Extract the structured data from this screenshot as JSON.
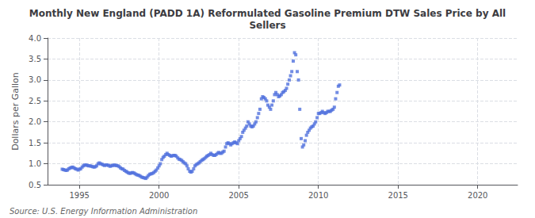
{
  "chart_data": {
    "type": "scatter",
    "title": "Monthly New England (PADD 1A) Reformulated Gasoline Premium DTW Sales Price by All\nSellers",
    "ylabel": "Dollars per Gallon",
    "annotations": [
      "Source: U.S. Energy Information Administration"
    ],
    "marker": "square",
    "grid": true,
    "xlim": [
      1993.0,
      2022.5
    ],
    "xticks": [
      1995,
      2000,
      2005,
      2010,
      2015,
      2020
    ],
    "ylim": [
      0.5,
      4.0
    ],
    "yticks": [
      0.5,
      {
        "value": 1.0,
        "label": "1.0"
      },
      1.5,
      {
        "value": 2.0,
        "label": "2.0"
      },
      2.5,
      {
        "value": 3.0,
        "label": "3.0"
      },
      3.5,
      {
        "value": 4.0,
        "label": "4.0"
      }
    ],
    "x": [
      1993.92,
      1994.0,
      1994.08,
      1994.17,
      1994.25,
      1994.33,
      1994.42,
      1994.5,
      1994.58,
      1994.67,
      1994.75,
      1994.83,
      1994.92,
      1995.0,
      1995.08,
      1995.17,
      1995.25,
      1995.33,
      1995.42,
      1995.5,
      1995.58,
      1995.67,
      1995.75,
      1995.83,
      1995.92,
      1996.0,
      1996.08,
      1996.17,
      1996.25,
      1996.33,
      1996.42,
      1996.5,
      1996.58,
      1996.67,
      1996.75,
      1996.83,
      1996.92,
      1997.0,
      1997.08,
      1997.17,
      1997.25,
      1997.33,
      1997.42,
      1997.5,
      1997.58,
      1997.67,
      1997.75,
      1997.83,
      1997.92,
      1998.0,
      1998.08,
      1998.17,
      1998.25,
      1998.33,
      1998.42,
      1998.5,
      1998.58,
      1998.67,
      1998.75,
      1998.83,
      1998.92,
      1999.0,
      1999.08,
      1999.17,
      1999.25,
      1999.33,
      1999.42,
      1999.5,
      1999.58,
      1999.67,
      1999.75,
      1999.83,
      1999.92,
      2000.0,
      2000.08,
      2000.17,
      2000.25,
      2000.33,
      2000.42,
      2000.5,
      2000.58,
      2000.67,
      2000.75,
      2000.83,
      2000.92,
      2001.0,
      2001.08,
      2001.17,
      2001.25,
      2001.33,
      2001.42,
      2001.5,
      2001.58,
      2001.67,
      2001.75,
      2001.83,
      2001.92,
      2002.0,
      2002.08,
      2002.17,
      2002.25,
      2002.33,
      2002.42,
      2002.5,
      2002.58,
      2002.67,
      2002.75,
      2002.83,
      2002.92,
      2003.0,
      2003.08,
      2003.17,
      2003.25,
      2003.33,
      2003.42,
      2003.5,
      2003.58,
      2003.67,
      2003.75,
      2003.83,
      2003.92,
      2004.0,
      2004.08,
      2004.17,
      2004.25,
      2004.33,
      2004.42,
      2004.5,
      2004.58,
      2004.67,
      2004.75,
      2004.83,
      2004.92,
      2005.0,
      2005.08,
      2005.17,
      2005.25,
      2005.33,
      2005.42,
      2005.5,
      2005.58,
      2005.67,
      2005.75,
      2005.83,
      2005.92,
      2006.0,
      2006.08,
      2006.17,
      2006.25,
      2006.33,
      2006.42,
      2006.5,
      2006.58,
      2006.67,
      2006.75,
      2006.83,
      2006.92,
      2007.0,
      2007.08,
      2007.17,
      2007.25,
      2007.33,
      2007.42,
      2007.5,
      2007.58,
      2007.67,
      2007.75,
      2007.83,
      2007.92,
      2008.0,
      2008.08,
      2008.17,
      2008.25,
      2008.33,
      2008.42,
      2008.5,
      2008.58,
      2008.67,
      2008.75,
      2008.83,
      2008.92,
      2009.0,
      2009.08,
      2009.17,
      2009.25,
      2009.33,
      2009.42,
      2009.5,
      2009.58,
      2009.67,
      2009.75,
      2009.83,
      2009.92,
      2010.0,
      2010.08,
      2010.17,
      2010.25,
      2010.33,
      2010.42,
      2010.5,
      2010.58,
      2010.67,
      2010.75,
      2010.83,
      2010.92,
      2011.0,
      2011.08,
      2011.17,
      2011.25,
      2011.33
    ],
    "values": [
      0.87,
      0.86,
      0.85,
      0.84,
      0.85,
      0.88,
      0.9,
      0.91,
      0.92,
      0.9,
      0.88,
      0.87,
      0.85,
      0.87,
      0.88,
      0.92,
      0.95,
      0.97,
      0.97,
      0.96,
      0.95,
      0.95,
      0.94,
      0.93,
      0.92,
      0.93,
      0.95,
      1.0,
      1.02,
      1.0,
      0.99,
      0.97,
      0.96,
      0.97,
      0.97,
      0.96,
      0.94,
      0.95,
      0.96,
      0.97,
      0.96,
      0.96,
      0.95,
      0.93,
      0.9,
      0.88,
      0.87,
      0.84,
      0.82,
      0.8,
      0.78,
      0.77,
      0.78,
      0.79,
      0.78,
      0.76,
      0.74,
      0.73,
      0.72,
      0.7,
      0.68,
      0.67,
      0.66,
      0.65,
      0.68,
      0.72,
      0.75,
      0.76,
      0.77,
      0.79,
      0.82,
      0.85,
      0.9,
      0.95,
      1.0,
      1.1,
      1.15,
      1.18,
      1.22,
      1.25,
      1.22,
      1.2,
      1.18,
      1.19,
      1.2,
      1.2,
      1.18,
      1.14,
      1.11,
      1.1,
      1.08,
      1.05,
      1.02,
      1.0,
      0.95,
      0.88,
      0.82,
      0.8,
      0.82,
      0.88,
      0.95,
      0.98,
      1.0,
      1.02,
      1.05,
      1.08,
      1.1,
      1.12,
      1.15,
      1.18,
      1.2,
      1.22,
      1.25,
      1.22,
      1.2,
      1.2,
      1.22,
      1.25,
      1.27,
      1.25,
      1.25,
      1.28,
      1.3,
      1.4,
      1.48,
      1.5,
      1.48,
      1.45,
      1.48,
      1.5,
      1.52,
      1.5,
      1.48,
      1.55,
      1.6,
      1.65,
      1.75,
      1.8,
      1.85,
      1.9,
      2.0,
      1.95,
      1.9,
      1.88,
      1.9,
      1.95,
      2.0,
      2.1,
      2.2,
      2.3,
      2.55,
      2.6,
      2.58,
      2.55,
      2.5,
      2.4,
      2.35,
      2.3,
      2.4,
      2.5,
      2.65,
      2.7,
      2.65,
      2.6,
      2.62,
      2.65,
      2.7,
      2.72,
      2.75,
      2.8,
      2.9,
      3.0,
      3.1,
      3.2,
      3.45,
      3.65,
      3.6,
      3.2,
      3.0,
      2.3,
      1.6,
      1.4,
      1.45,
      1.55,
      1.68,
      1.75,
      1.8,
      1.85,
      1.88,
      1.9,
      1.95,
      2.0,
      2.1,
      2.2,
      2.2,
      2.22,
      2.25,
      2.22,
      2.2,
      2.22,
      2.25,
      2.25,
      2.25,
      2.28,
      2.3,
      2.35,
      2.55,
      2.7,
      2.85,
      2.88
    ]
  }
}
